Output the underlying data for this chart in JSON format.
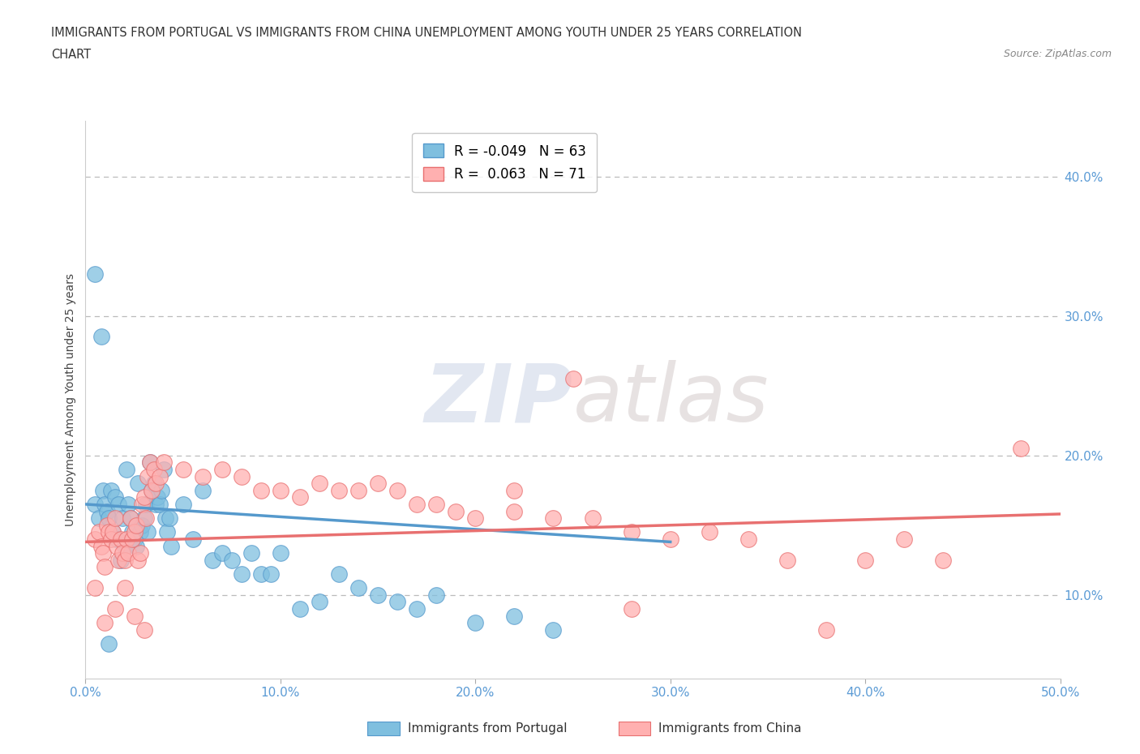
{
  "title_line1": "IMMIGRANTS FROM PORTUGAL VS IMMIGRANTS FROM CHINA UNEMPLOYMENT AMONG YOUTH UNDER 25 YEARS CORRELATION",
  "title_line2": "CHART",
  "source_text": "Source: ZipAtlas.com",
  "ylabel": "Unemployment Among Youth under 25 years",
  "xlim": [
    0.0,
    0.5
  ],
  "ylim": [
    0.04,
    0.44
  ],
  "xticks": [
    0.0,
    0.1,
    0.2,
    0.3,
    0.4,
    0.5
  ],
  "xtick_labels": [
    "0.0%",
    "10.0%",
    "20.0%",
    "30.0%",
    "40.0%",
    "50.0%"
  ],
  "yticks_right": [
    0.1,
    0.2,
    0.3,
    0.4
  ],
  "ytick_right_labels": [
    "10.0%",
    "20.0%",
    "30.0%",
    "40.0%"
  ],
  "background_color": "#ffffff",
  "grid_color": "#bbbbbb",
  "portugal_color": "#7fbfdf",
  "portugal_edge_color": "#5599cc",
  "china_color": "#ffb0b0",
  "china_edge_color": "#e87070",
  "portugal_R": -0.049,
  "portugal_N": 63,
  "china_R": 0.063,
  "china_N": 71,
  "watermark_text1": "ZIP",
  "watermark_text2": "atlas",
  "legend_label_portugal": "Immigrants from Portugal",
  "legend_label_china": "Immigrants from China",
  "portugal_scatter_x": [
    0.005,
    0.007,
    0.009,
    0.01,
    0.011,
    0.012,
    0.013,
    0.014,
    0.015,
    0.016,
    0.017,
    0.018,
    0.019,
    0.02,
    0.021,
    0.022,
    0.023,
    0.024,
    0.025,
    0.026,
    0.027,
    0.028,
    0.029,
    0.03,
    0.031,
    0.032,
    0.033,
    0.034,
    0.035,
    0.036,
    0.037,
    0.038,
    0.039,
    0.04,
    0.041,
    0.042,
    0.043,
    0.044,
    0.05,
    0.055,
    0.06,
    0.065,
    0.07,
    0.075,
    0.08,
    0.085,
    0.09,
    0.095,
    0.1,
    0.11,
    0.12,
    0.13,
    0.14,
    0.15,
    0.16,
    0.17,
    0.18,
    0.2,
    0.22,
    0.24,
    0.005,
    0.008,
    0.012
  ],
  "portugal_scatter_y": [
    0.165,
    0.155,
    0.175,
    0.165,
    0.16,
    0.155,
    0.175,
    0.145,
    0.17,
    0.14,
    0.165,
    0.125,
    0.155,
    0.135,
    0.19,
    0.165,
    0.155,
    0.145,
    0.14,
    0.135,
    0.18,
    0.145,
    0.15,
    0.155,
    0.165,
    0.145,
    0.195,
    0.175,
    0.18,
    0.165,
    0.17,
    0.165,
    0.175,
    0.19,
    0.155,
    0.145,
    0.155,
    0.135,
    0.165,
    0.14,
    0.175,
    0.125,
    0.13,
    0.125,
    0.115,
    0.13,
    0.115,
    0.115,
    0.13,
    0.09,
    0.095,
    0.115,
    0.105,
    0.1,
    0.095,
    0.09,
    0.1,
    0.08,
    0.085,
    0.075,
    0.33,
    0.285,
    0.065
  ],
  "china_scatter_x": [
    0.005,
    0.007,
    0.008,
    0.009,
    0.01,
    0.011,
    0.012,
    0.013,
    0.014,
    0.015,
    0.016,
    0.017,
    0.018,
    0.019,
    0.02,
    0.021,
    0.022,
    0.023,
    0.024,
    0.025,
    0.026,
    0.027,
    0.028,
    0.029,
    0.03,
    0.031,
    0.032,
    0.033,
    0.034,
    0.035,
    0.036,
    0.038,
    0.04,
    0.05,
    0.06,
    0.07,
    0.08,
    0.09,
    0.1,
    0.11,
    0.12,
    0.13,
    0.14,
    0.15,
    0.16,
    0.17,
    0.18,
    0.19,
    0.2,
    0.22,
    0.24,
    0.26,
    0.28,
    0.3,
    0.32,
    0.34,
    0.36,
    0.4,
    0.42,
    0.44,
    0.005,
    0.01,
    0.015,
    0.02,
    0.025,
    0.03,
    0.22,
    0.25,
    0.28,
    0.48,
    0.38
  ],
  "china_scatter_y": [
    0.14,
    0.145,
    0.135,
    0.13,
    0.12,
    0.15,
    0.145,
    0.14,
    0.145,
    0.155,
    0.135,
    0.125,
    0.14,
    0.13,
    0.125,
    0.14,
    0.13,
    0.155,
    0.14,
    0.145,
    0.15,
    0.125,
    0.13,
    0.165,
    0.17,
    0.155,
    0.185,
    0.195,
    0.175,
    0.19,
    0.18,
    0.185,
    0.195,
    0.19,
    0.185,
    0.19,
    0.185,
    0.175,
    0.175,
    0.17,
    0.18,
    0.175,
    0.175,
    0.18,
    0.175,
    0.165,
    0.165,
    0.16,
    0.155,
    0.16,
    0.155,
    0.155,
    0.145,
    0.14,
    0.145,
    0.14,
    0.125,
    0.125,
    0.14,
    0.125,
    0.105,
    0.08,
    0.09,
    0.105,
    0.085,
    0.075,
    0.175,
    0.255,
    0.09,
    0.205,
    0.075
  ],
  "portugal_trend_x": [
    0.0,
    0.3
  ],
  "portugal_trend_y": [
    0.165,
    0.138
  ],
  "china_trend_x": [
    0.0,
    0.5
  ],
  "china_trend_y": [
    0.138,
    0.158
  ]
}
